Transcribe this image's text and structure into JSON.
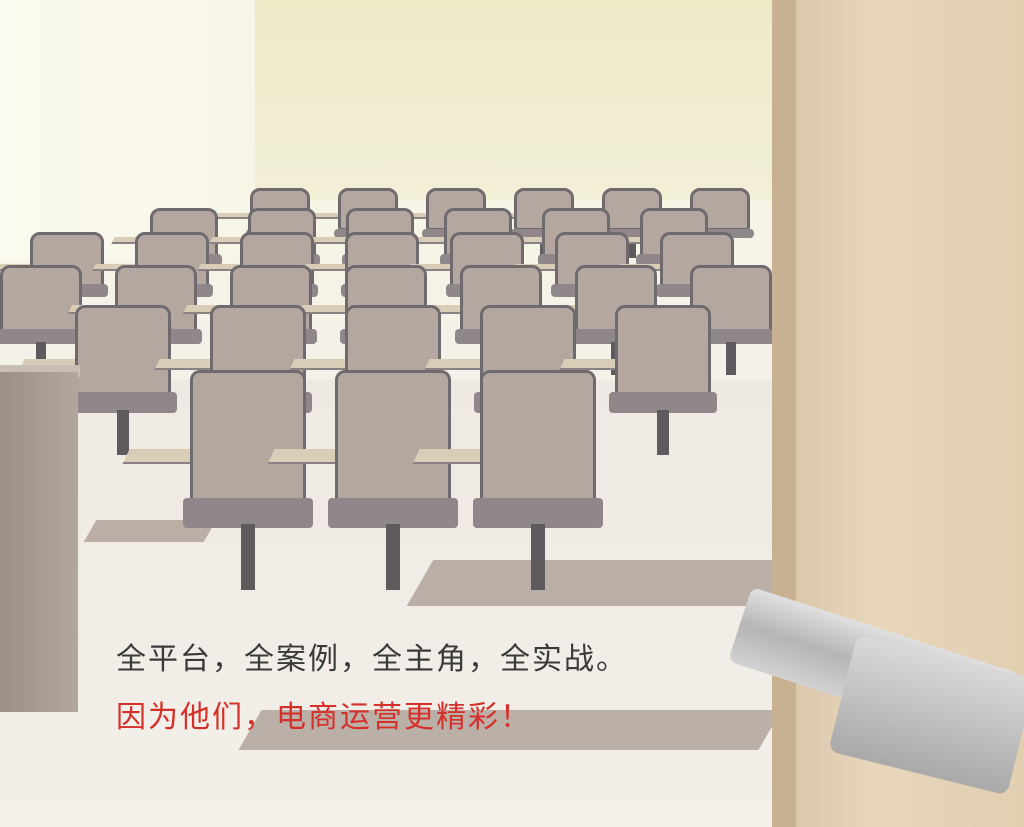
{
  "caption": {
    "line1": "全平台，全案例，全主角，全实战。",
    "line2": "因为他们，电商运营更精彩！"
  },
  "colors": {
    "headline_gray": "#3a3a3a",
    "headline_red": "#d6302a"
  }
}
